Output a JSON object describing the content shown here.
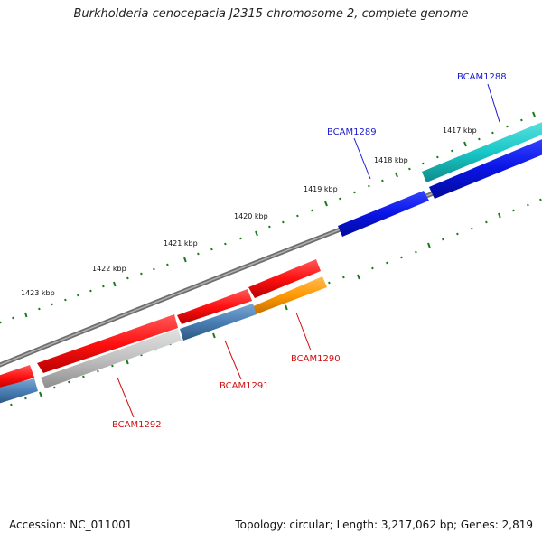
{
  "title": "Burkholderia cenocepacia J2315 chromosome 2, complete genome",
  "footer": {
    "accession": "Accession: NC_011001",
    "summary": "Topology: circular; Length: 3,217,062 bp; Genes: 2,819"
  },
  "kbp_labels": [
    "1417 kbp",
    "1418 kbp",
    "1419 kbp",
    "1420 kbp",
    "1421 kbp",
    "1422 kbp",
    "1423 kbp"
  ],
  "gene_labels": {
    "BCAM1288": "BCAM1288",
    "BCAM1289": "BCAM1289",
    "BCAM1290": "BCAM1290",
    "BCAM1291": "BCAM1291",
    "BCAM1292": "BCAM1292"
  },
  "colors": {
    "backbone": "#808080",
    "tick": "#1a7a1a",
    "red": "#ff1a1a",
    "blue": "#0a14e6",
    "cyan": "#19c8c8",
    "orange": "#ff9900",
    "steelblue": "#4a7fb5",
    "grey": "#c0c0c0",
    "label_blue": "#1a1ad0",
    "label_red": "#d01010"
  }
}
